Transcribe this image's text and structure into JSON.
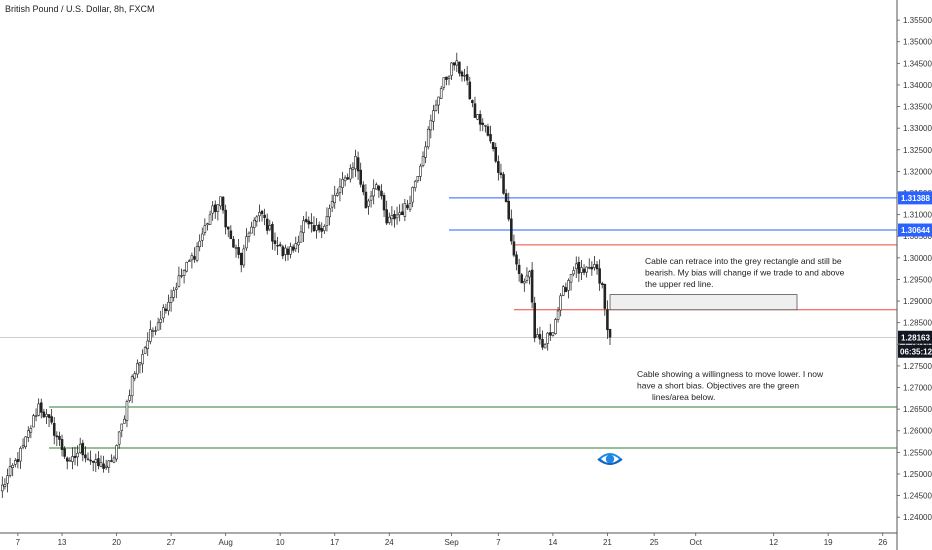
{
  "title": "British Pound / U.S. Dollar, 8h, FXCM",
  "colors": {
    "blue_line": "#2962ff",
    "red_line": "#f44336",
    "green_line": "#2e7d32",
    "current_line": "#9e9e9e",
    "candle": "#222222",
    "tag_dark": "#131722",
    "grid_axis": "#555555"
  },
  "annotations": {
    "note_upper": [
      "Cable can retrace into the grey rectangle and still be",
      "bearish. My bias will change if we trade to and above",
      "the upper red line."
    ],
    "note_lower": [
      "Cable showing a willingness to move lower. I now",
      "have a short bias. Objectives are the green",
      "lines/area below."
    ]
  },
  "price_tags": {
    "blue_high": "1.31388",
    "blue_low": "1.30644",
    "current": "1.28163",
    "countdown": "06:35:12"
  },
  "chart_data": {
    "type": "candlestick",
    "ylim": [
      1.2375,
      1.3585
    ],
    "y_ticks": [
      "1.24000",
      "1.24500",
      "1.25000",
      "1.25500",
      "1.26000",
      "1.26500",
      "1.27000",
      "1.27500",
      "1.28000",
      "1.28500",
      "1.29000",
      "1.29500",
      "1.30000",
      "1.30500",
      "1.31000",
      "1.31500",
      "1.32000",
      "1.32500",
      "1.33000",
      "1.33500",
      "1.34000",
      "1.34500",
      "1.35000",
      "1.35500"
    ],
    "x_ticks": [
      {
        "label": "7",
        "bar": 6
      },
      {
        "label": "13",
        "bar": 23
      },
      {
        "label": "20",
        "bar": 44
      },
      {
        "label": "27",
        "bar": 65
      },
      {
        "label": "Aug",
        "bar": 86
      },
      {
        "label": "10",
        "bar": 107
      },
      {
        "label": "17",
        "bar": 128
      },
      {
        "label": "24",
        "bar": 149
      },
      {
        "label": "Sep",
        "bar": 173
      },
      {
        "label": "7",
        "bar": 191
      },
      {
        "label": "14",
        "bar": 212
      },
      {
        "label": "21",
        "bar": 233
      },
      {
        "label": "25",
        "bar": 251
      },
      {
        "label": "Oct",
        "bar": 267
      },
      {
        "label": "12",
        "bar": 297
      },
      {
        "label": "19",
        "bar": 318
      },
      {
        "label": "26",
        "bar": 339
      }
    ],
    "levels": [
      {
        "name": "resistance high",
        "price": 1.31388,
        "color": "blue",
        "from_bar": 172
      },
      {
        "name": "resistance low",
        "price": 1.30644,
        "color": "blue",
        "from_bar": 172
      },
      {
        "name": "upper red line",
        "price": 1.303,
        "color": "red",
        "from_bar": 197
      },
      {
        "name": "lower red line",
        "price": 1.288,
        "color": "red",
        "from_bar": 197
      },
      {
        "name": "green line 1",
        "price": 1.2655,
        "color": "green",
        "from_bar": 18
      },
      {
        "name": "green line 2",
        "price": 1.256,
        "color": "green",
        "from_bar": 18
      }
    ],
    "rectangle": {
      "bar_from": 234,
      "bar_to": 306,
      "price_low": 1.288,
      "price_high": 1.2915
    },
    "current_price": 1.28163,
    "path": [
      [
        0,
        1.247
      ],
      [
        8,
        1.256
      ],
      [
        14,
        1.266
      ],
      [
        20,
        1.26
      ],
      [
        26,
        1.252
      ],
      [
        30,
        1.256
      ],
      [
        36,
        1.252
      ],
      [
        42,
        1.252
      ],
      [
        46,
        1.261
      ],
      [
        50,
        1.272
      ],
      [
        56,
        1.281
      ],
      [
        62,
        1.288
      ],
      [
        68,
        1.295
      ],
      [
        74,
        1.301
      ],
      [
        80,
        1.31
      ],
      [
        84,
        1.313
      ],
      [
        88,
        1.304
      ],
      [
        92,
        1.299
      ],
      [
        96,
        1.308
      ],
      [
        100,
        1.31
      ],
      [
        104,
        1.305
      ],
      [
        108,
        1.301
      ],
      [
        112,
        1.302
      ],
      [
        116,
        1.308
      ],
      [
        120,
        1.306
      ],
      [
        124,
        1.308
      ],
      [
        128,
        1.314
      ],
      [
        132,
        1.318
      ],
      [
        136,
        1.323
      ],
      [
        140,
        1.312
      ],
      [
        144,
        1.318
      ],
      [
        148,
        1.308
      ],
      [
        152,
        1.31
      ],
      [
        156,
        1.312
      ],
      [
        160,
        1.32
      ],
      [
        164,
        1.329
      ],
      [
        168,
        1.338
      ],
      [
        172,
        1.343
      ],
      [
        174,
        1.345
      ],
      [
        178,
        1.342
      ],
      [
        182,
        1.333
      ],
      [
        186,
        1.33
      ],
      [
        190,
        1.323
      ],
      [
        194,
        1.314
      ],
      [
        196,
        1.304
      ],
      [
        198,
        1.298
      ],
      [
        200,
        1.294
      ],
      [
        203,
        1.297
      ],
      [
        205,
        1.282
      ],
      [
        208,
        1.279
      ],
      [
        212,
        1.284
      ],
      [
        216,
        1.292
      ],
      [
        220,
        1.298
      ],
      [
        224,
        1.296
      ],
      [
        228,
        1.298
      ],
      [
        231,
        1.293
      ],
      [
        233,
        1.283
      ],
      [
        234,
        1.2816
      ]
    ]
  }
}
